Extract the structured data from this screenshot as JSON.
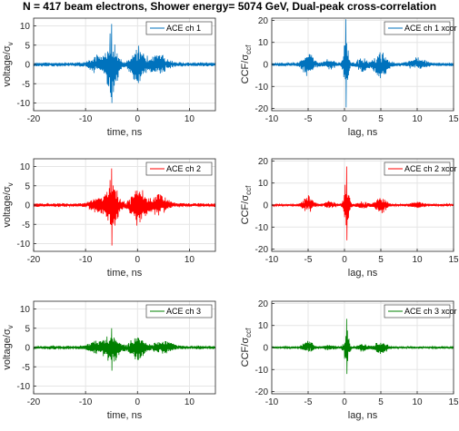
{
  "title": "N = 417 beam electrons, Shower energy= 5074 GeV, Dual-peak cross-correlation",
  "chart_data": [
    {
      "id": "p1",
      "type": "line",
      "legend": "ACE ch 1",
      "color": "#0072BD",
      "xlabel": "time, ns",
      "ylabel": "voltage/σ",
      "ylabel_sub": "v",
      "xlim": [
        -20,
        15
      ],
      "ylim": [
        -12,
        12
      ],
      "xticks": [
        -20,
        -10,
        0,
        10
      ],
      "yticks": [
        -10,
        -5,
        0,
        5,
        10
      ],
      "noise": 0.55,
      "bursts": [
        {
          "t": -5,
          "amp": 9,
          "w": 1.2
        },
        {
          "t": 0,
          "amp": 5,
          "w": 1.5
        },
        {
          "t": -8,
          "amp": 2,
          "w": 1.5
        },
        {
          "t": 4,
          "amp": 2.5,
          "w": 2
        }
      ],
      "peak": {
        "t": -5,
        "max": 10.5,
        "min": -10
      }
    },
    {
      "id": "p2",
      "type": "line",
      "legend": "ACE ch 1 xcor",
      "color": "#0072BD",
      "xlabel": "lag, ns",
      "ylabel": "CCF/σ",
      "ylabel_sub": "ccf",
      "xlim": [
        -10,
        15
      ],
      "ylim": [
        -21,
        21
      ],
      "xticks": [
        -10,
        -5,
        0,
        5,
        10,
        15
      ],
      "yticks": [
        -20,
        -10,
        0,
        10,
        20
      ],
      "noise": 0.8,
      "bursts": [
        {
          "t": 0.2,
          "amp": 17,
          "w": 0.35
        },
        {
          "t": -5,
          "amp": 5,
          "w": 0.9
        },
        {
          "t": 5,
          "amp": 6,
          "w": 1.0
        },
        {
          "t": -2,
          "amp": 2,
          "w": 0.8
        },
        {
          "t": 2.5,
          "amp": 3,
          "w": 0.8
        },
        {
          "t": 10,
          "amp": 2.5,
          "w": 1.2
        }
      ],
      "peak": {
        "t": 0.2,
        "max": 20.5,
        "min": -19.5
      }
    },
    {
      "id": "p3",
      "type": "line",
      "legend": "ACE ch 2",
      "color": "#FF0000",
      "xlabel": "time, ns",
      "ylabel": "voltage/σ",
      "ylabel_sub": "v",
      "xlim": [
        -20,
        15
      ],
      "ylim": [
        -12,
        12
      ],
      "xticks": [
        -20,
        -10,
        0,
        10
      ],
      "yticks": [
        -10,
        -5,
        0,
        5,
        10
      ],
      "noise": 0.5,
      "bursts": [
        {
          "t": -5,
          "amp": 7,
          "w": 1.3
        },
        {
          "t": 0,
          "amp": 5,
          "w": 1.6
        },
        {
          "t": -8,
          "amp": 1.5,
          "w": 1.5
        },
        {
          "t": 4,
          "amp": 2.5,
          "w": 2
        }
      ],
      "peak": {
        "t": -5,
        "max": 9.5,
        "min": -10.5
      }
    },
    {
      "id": "p4",
      "type": "line",
      "legend": "ACE ch 2 xcor",
      "color": "#FF0000",
      "xlabel": "lag, ns",
      "ylabel": "CCF/σ",
      "ylabel_sub": "ccf",
      "xlim": [
        -10,
        15
      ],
      "ylim": [
        -21,
        21
      ],
      "xticks": [
        -10,
        -5,
        0,
        5,
        10,
        15
      ],
      "yticks": [
        -20,
        -10,
        0,
        10,
        20
      ],
      "noise": 0.5,
      "bursts": [
        {
          "t": 0.3,
          "amp": 12,
          "w": 0.4
        },
        {
          "t": -5,
          "amp": 4,
          "w": 0.8
        },
        {
          "t": 5,
          "amp": 4,
          "w": 0.8
        },
        {
          "t": -2,
          "amp": 1.5,
          "w": 0.8
        },
        {
          "t": 2.5,
          "amp": 1.5,
          "w": 0.8
        },
        {
          "t": 10,
          "amp": 1,
          "w": 1.2
        }
      ],
      "peak": {
        "t": 0.3,
        "max": 17.5,
        "min": -16
      }
    },
    {
      "id": "p5",
      "type": "line",
      "legend": "ACE ch 3",
      "color": "#008000",
      "xlabel": "time, ns",
      "ylabel": "voltage/σ",
      "ylabel_sub": "v",
      "xlim": [
        -20,
        15
      ],
      "ylim": [
        -12,
        12
      ],
      "xticks": [
        -20,
        -10,
        0,
        10
      ],
      "yticks": [
        -10,
        -5,
        0,
        5,
        10
      ],
      "noise": 0.5,
      "bursts": [
        {
          "t": -5,
          "amp": 4,
          "w": 1.5
        },
        {
          "t": 0,
          "amp": 3,
          "w": 1.6
        },
        {
          "t": -8,
          "amp": 1.5,
          "w": 1.5
        },
        {
          "t": 5,
          "amp": 1.5,
          "w": 2
        }
      ],
      "peak": {
        "t": -5,
        "max": 5,
        "min": -6
      }
    },
    {
      "id": "p6",
      "type": "line",
      "legend": "ACE ch 3 xcor",
      "color": "#008000",
      "xlabel": "lag, ns",
      "ylabel": "CCF/σ",
      "ylabel_sub": "ccf",
      "xlim": [
        -10,
        15
      ],
      "ylim": [
        -21,
        21
      ],
      "xticks": [
        -10,
        -5,
        0,
        5,
        10,
        15
      ],
      "yticks": [
        -20,
        -10,
        0,
        10,
        20
      ],
      "noise": 0.5,
      "bursts": [
        {
          "t": 0.3,
          "amp": 8,
          "w": 0.4
        },
        {
          "t": -5,
          "amp": 3,
          "w": 0.8
        },
        {
          "t": 5,
          "amp": 3,
          "w": 0.9
        },
        {
          "t": -2,
          "amp": 1,
          "w": 0.8
        },
        {
          "t": 2.5,
          "amp": 1.5,
          "w": 0.8
        }
      ],
      "peak": {
        "t": 0.3,
        "max": 13,
        "min": -12
      }
    }
  ]
}
